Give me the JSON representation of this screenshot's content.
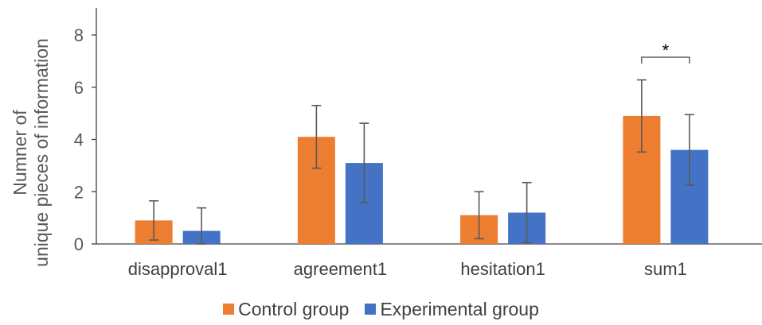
{
  "chart_data": {
    "type": "bar",
    "categories": [
      "disapproval1",
      "agreement1",
      "hesitation1",
      "sum1"
    ],
    "series": [
      {
        "name": "Control group",
        "color": "#ED7D31",
        "values": [
          0.9,
          4.1,
          1.1,
          4.9
        ],
        "error": [
          0.75,
          1.2,
          0.9,
          1.38
        ]
      },
      {
        "name": "Experimental group",
        "color": "#4472C4",
        "values": [
          0.5,
          3.1,
          1.2,
          3.6
        ],
        "error": [
          0.88,
          1.52,
          1.15,
          1.35
        ]
      }
    ],
    "ylabel_lines": [
      "Numner of",
      "unique pieces of information"
    ],
    "ylim": [
      0,
      8
    ],
    "yticks": [
      "0",
      "2",
      "4",
      "6",
      "8"
    ],
    "legend_position": "bottom",
    "grid": false,
    "annotations": [
      {
        "category": "sum1",
        "text": "*"
      }
    ]
  }
}
